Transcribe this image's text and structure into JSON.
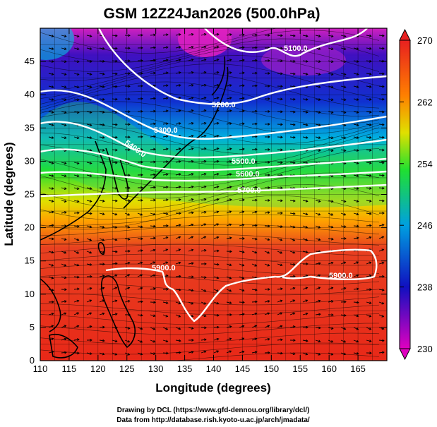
{
  "title": "GSM 12Z24Jan2026 (500.0hPa)",
  "xlabel": "Longitude (degrees)",
  "ylabel": "Latitude  (degrees)",
  "x_ticks": [
    "110",
    "115",
    "120",
    "125",
    "130",
    "135",
    "140",
    "145",
    "150",
    "155",
    "160",
    "165"
  ],
  "y_ticks": [
    "0",
    "5",
    "10",
    "15",
    "20",
    "25",
    "30",
    "35",
    "40",
    "45"
  ],
  "colorbar": {
    "ticks": [
      "230",
      "238",
      "246",
      "254",
      "262",
      "270"
    ],
    "stops": [
      "#e000c0",
      "#1010c0",
      "#00a0e0",
      "#20e030",
      "#e0e000",
      "#ff8000",
      "#e82020"
    ]
  },
  "contour_labels": [
    "5100.0",
    "5200.0",
    "5300.0",
    "5400.0",
    "5500.0",
    "5600.0",
    "5700.0",
    "5900.0",
    "5900.0"
  ],
  "credits": {
    "line1": "Drawing by DCL (https://www.gfd-dennou.org/library/dcl/)",
    "line2": "Data from http://database.rish.kyoto-u.ac.jp/arch/jmadata/"
  },
  "chart_data": {
    "type": "heatmap",
    "title": "GSM 12Z24Jan2026 (500.0hPa)",
    "xlabel": "Longitude (degrees)",
    "ylabel": "Latitude  (degrees)",
    "xlim": [
      110,
      170
    ],
    "ylim": [
      0,
      50
    ],
    "color_range": [
      230,
      270
    ],
    "contour_levels": [
      5100,
      5200,
      5300,
      5400,
      5500,
      5600,
      5700,
      5900
    ],
    "grid": true
  }
}
